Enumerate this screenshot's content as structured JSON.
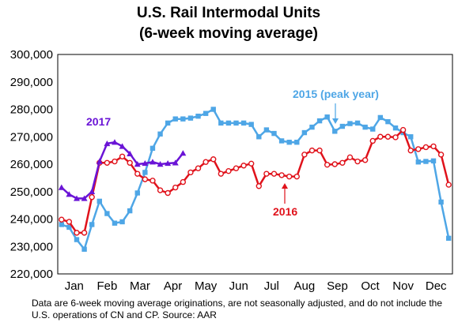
{
  "chart_data": {
    "type": "line",
    "title": "U.S. Rail Intermodal Units",
    "subtitle": "(6-week moving average)",
    "x_tick_labels": [
      "Jan",
      "Feb",
      "Mar",
      "Apr",
      "May",
      "Jun",
      "Jul",
      "Aug",
      "Sep",
      "Oct",
      "Nov",
      "Dec"
    ],
    "x_unit": "week of year",
    "xlim": [
      0.5,
      52.5
    ],
    "ylim": [
      220000,
      300000
    ],
    "y_tick_labels": [
      "220,000",
      "230,000",
      "240,000",
      "250,000",
      "260,000",
      "270,000",
      "280,000",
      "290,000",
      "300,000"
    ],
    "y_ticks": [
      220000,
      230000,
      240000,
      250000,
      260000,
      270000,
      280000,
      290000,
      300000
    ],
    "grid": false,
    "legend": "inline labels",
    "series": [
      {
        "name": "2015 (peak year)",
        "color": "#4ea6e6",
        "marker": "square",
        "x": [
          1,
          2,
          3,
          4,
          5,
          6,
          7,
          8,
          9,
          10,
          11,
          12,
          13,
          14,
          15,
          16,
          17,
          18,
          19,
          20,
          21,
          22,
          23,
          24,
          25,
          26,
          27,
          28,
          29,
          30,
          31,
          32,
          33,
          34,
          35,
          36,
          37,
          38,
          39,
          40,
          41,
          42,
          43,
          44,
          45,
          46,
          47,
          48,
          49,
          50,
          51,
          52
        ],
        "y": [
          238000,
          237000,
          232500,
          229000,
          238000,
          246500,
          242000,
          238500,
          239000,
          243000,
          249500,
          257000,
          265800,
          271000,
          275000,
          276500,
          276500,
          276800,
          277500,
          278500,
          280000,
          275000,
          275000,
          275000,
          275000,
          274500,
          270000,
          272500,
          271200,
          268500,
          268000,
          268000,
          271500,
          273500,
          275800,
          277200,
          272000,
          273800,
          274800,
          275000,
          273500,
          272800,
          277000,
          275500,
          273200,
          271500,
          270000,
          260800,
          261000,
          261200,
          246200,
          233000
        ]
      },
      {
        "name": "2016",
        "color": "#e0121b",
        "marker": "circle",
        "x": [
          1,
          2,
          3,
          4,
          5,
          6,
          7,
          8,
          9,
          10,
          11,
          12,
          13,
          14,
          15,
          16,
          17,
          18,
          19,
          20,
          21,
          22,
          23,
          24,
          25,
          26,
          27,
          28,
          29,
          30,
          31,
          32,
          33,
          34,
          35,
          36,
          37,
          38,
          39,
          40,
          41,
          42,
          43,
          44,
          45,
          46,
          47,
          48,
          49,
          50,
          51,
          52
        ],
        "y": [
          239800,
          239000,
          235000,
          235000,
          248000,
          260500,
          260500,
          261000,
          262800,
          260500,
          256500,
          254500,
          254000,
          250500,
          249500,
          251500,
          253500,
          257000,
          258500,
          260800,
          261800,
          256500,
          257500,
          258500,
          259500,
          260200,
          252000,
          256500,
          256500,
          256000,
          255500,
          255500,
          263500,
          265000,
          265000,
          259800,
          260000,
          260500,
          262500,
          261000,
          261500,
          268500,
          270000,
          270000,
          269800,
          272500,
          265000,
          265500,
          266200,
          266500,
          263500,
          252500
        ]
      },
      {
        "name": "2017",
        "color": "#6a14d6",
        "marker": "triangle",
        "x": [
          1,
          2,
          3,
          4,
          5,
          6,
          7,
          8,
          9,
          10,
          11,
          12,
          13,
          14,
          15,
          16,
          17
        ],
        "y": [
          251500,
          249000,
          247500,
          247500,
          250000,
          261000,
          267500,
          268000,
          266500,
          263800,
          260000,
          260300,
          260800,
          260000,
          260300,
          260500,
          264000
        ]
      }
    ],
    "series_labels": [
      "2015 (peak year)",
      "2016",
      "2017"
    ],
    "footnote": "Data are 6-week moving average originations, are not seasonally adjusted, and do not include the U.S. operations of CN and CP.   Source: AAR"
  }
}
